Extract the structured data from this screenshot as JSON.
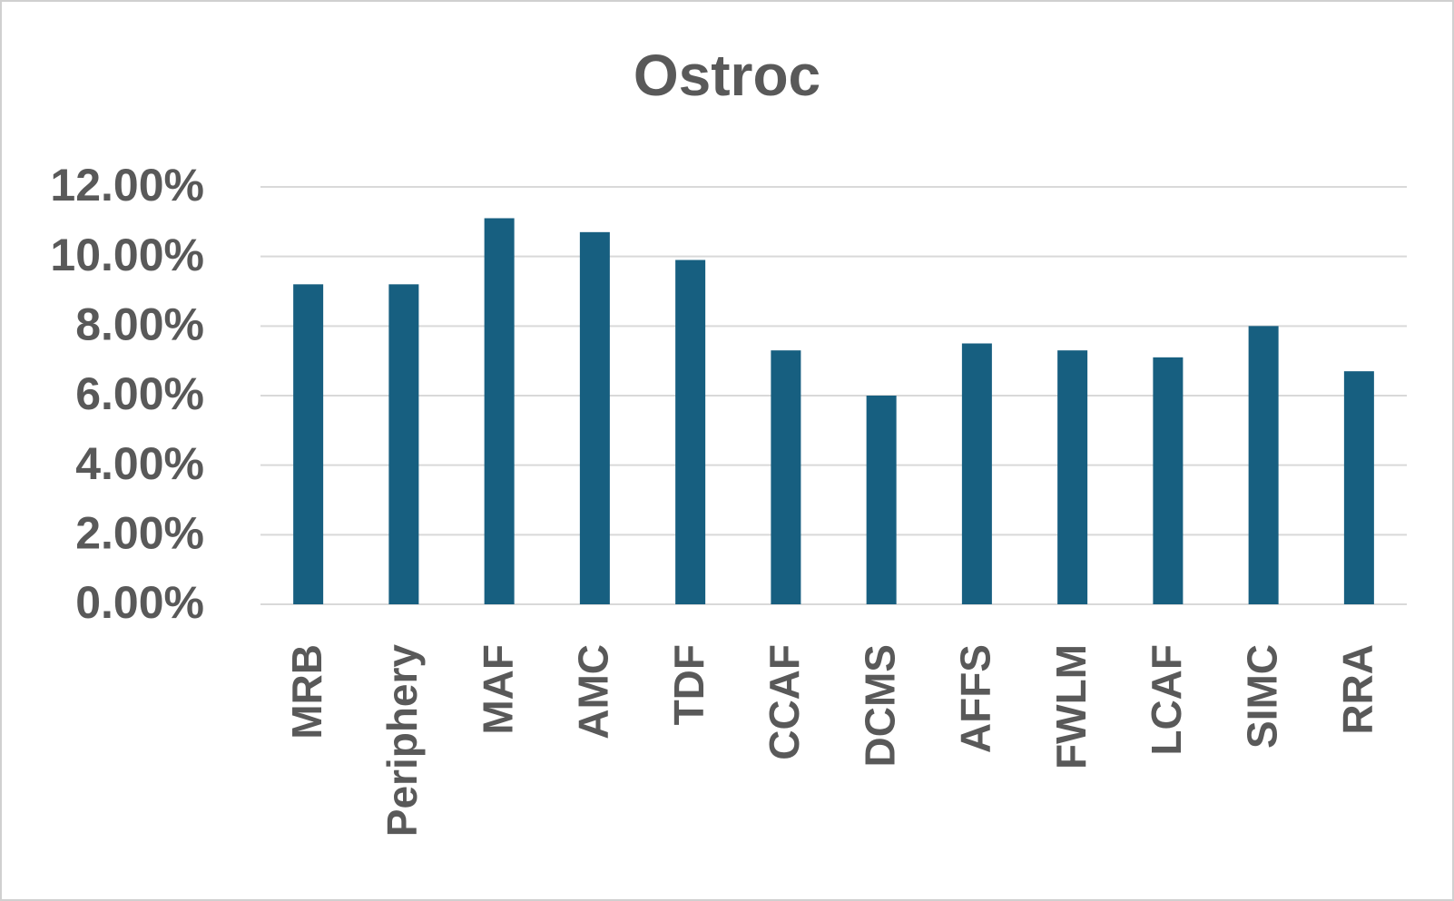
{
  "chart_data": {
    "type": "bar",
    "title": "Ostroc",
    "categories": [
      "MRB",
      "Periphery",
      "MAF",
      "AMC",
      "TDF",
      "CCAF",
      "DCMS",
      "AFFS",
      "FWLM",
      "LCAF",
      "SIMC",
      "RRA"
    ],
    "values": [
      9.2,
      9.2,
      11.1,
      10.7,
      9.9,
      7.3,
      6.0,
      7.5,
      7.3,
      7.1,
      8.0,
      6.7
    ],
    "color": "#175f80",
    "ylim": [
      0,
      12
    ],
    "yticks": [
      {
        "value": 0,
        "label": "0.00%"
      },
      {
        "value": 2,
        "label": "2.00%"
      },
      {
        "value": 4,
        "label": "4.00%"
      },
      {
        "value": 6,
        "label": "6.00%"
      },
      {
        "value": 8,
        "label": "8.00%"
      },
      {
        "value": 10,
        "label": "10.00%"
      },
      {
        "value": 12,
        "label": "12.00%"
      }
    ],
    "grid": true
  }
}
